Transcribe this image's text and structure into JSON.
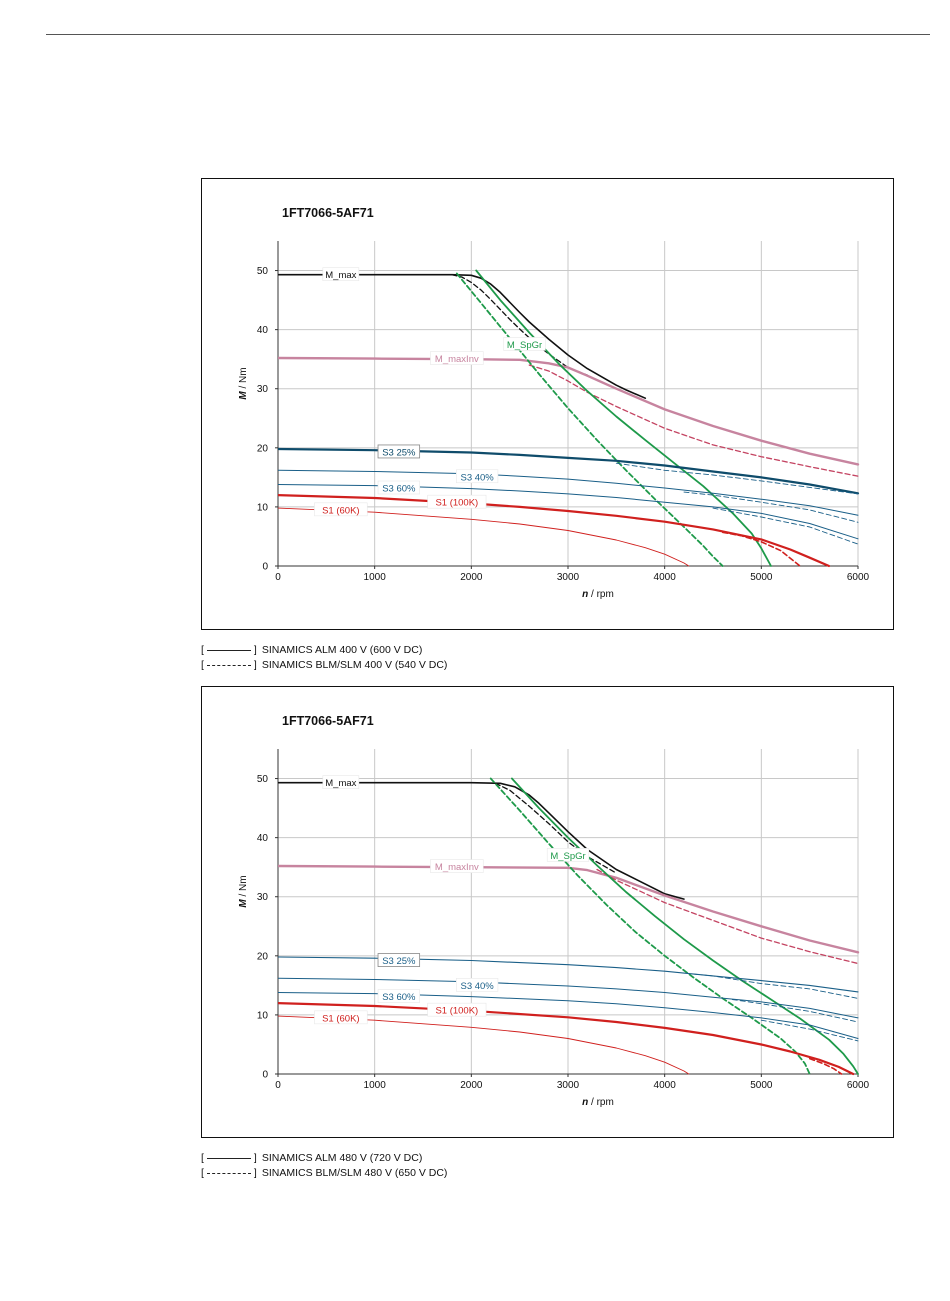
{
  "chart_data": [
    {
      "type": "line",
      "title": "1FT7066-5AF71",
      "xlabel_italic": "n",
      "xlabel_unit": "/ rpm",
      "ylabel_italic": "M",
      "ylabel_unit": "/ Nm",
      "xlim": [
        0,
        6000
      ],
      "ylim": [
        0,
        55
      ],
      "xticks": [
        "0",
        "1000",
        "2000",
        "3000",
        "4000",
        "5000",
        "6000"
      ],
      "yticks": [
        "0",
        "10",
        "20",
        "30",
        "40",
        "50"
      ],
      "grid": true,
      "series": [
        {
          "name": "M_max",
          "color": "#111111",
          "style": "solid",
          "width": 1.6,
          "x": [
            0,
            1500,
            1800,
            2000,
            2100,
            2200,
            2300,
            2400,
            2500,
            2600,
            2800,
            3000,
            3200,
            3500,
            3600,
            3800
          ],
          "y": [
            49.3,
            49.3,
            49.3,
            49.2,
            48.7,
            47.7,
            46.3,
            44.6,
            42.9,
            41.3,
            38.4,
            35.7,
            33.4,
            30.6,
            29.8,
            28.4
          ]
        },
        {
          "name": "",
          "color": "#111111",
          "style": "dashed",
          "width": 1.3,
          "x": [
            1800,
            1900,
            2000,
            2100,
            2200,
            2300,
            2400,
            2500,
            2600,
            2700,
            2800,
            3000,
            3200
          ],
          "y": [
            49.3,
            48.9,
            48.0,
            46.7,
            45.1,
            43.4,
            41.7,
            40.1,
            38.6,
            37.2,
            35.9,
            33.6,
            32.3
          ]
        },
        {
          "name": "M_maxInv",
          "color": "#c7849f",
          "style": "solid",
          "width": 2.4,
          "x": [
            0,
            1000,
            2000,
            2500,
            2800,
            3000,
            3200,
            3500,
            4000,
            4500,
            5000,
            5500,
            6000
          ],
          "y": [
            35.2,
            35.1,
            35.0,
            34.9,
            34.3,
            33.6,
            32.2,
            30.0,
            26.5,
            23.7,
            21.2,
            19.0,
            17.2
          ]
        },
        {
          "name": "",
          "color": "#c44462",
          "style": "dashed",
          "width": 1.3,
          "x": [
            2600,
            2800,
            3000,
            3200,
            3500,
            4000,
            4500,
            5000,
            5500,
            6000
          ],
          "y": [
            34.0,
            33.0,
            31.3,
            29.4,
            27.0,
            23.3,
            20.5,
            18.5,
            16.8,
            15.2
          ]
        },
        {
          "name": "M_SpGr",
          "color": "#1e9a4a",
          "style": "solid",
          "width": 1.8,
          "x": [
            2050,
            2300,
            2600,
            2900,
            3200,
            3500,
            3800,
            4100,
            4400,
            4700,
            4900,
            5000,
            5100
          ],
          "y": [
            50.0,
            45.0,
            39.5,
            34.3,
            29.6,
            25.3,
            21.3,
            17.4,
            13.5,
            9.0,
            5.5,
            3.0,
            0
          ]
        },
        {
          "name": "",
          "color": "#1e9a4a",
          "style": "dashed",
          "width": 1.8,
          "x": [
            1850,
            2100,
            2400,
            2700,
            3000,
            3300,
            3600,
            3900,
            4200,
            4400,
            4500,
            4600
          ],
          "y": [
            49.5,
            44.5,
            38.5,
            32.5,
            26.7,
            21.3,
            16.2,
            11.3,
            6.6,
            3.4,
            1.6,
            0
          ]
        },
        {
          "name": "S3 25%",
          "color": "#0f4c6b",
          "style": "solid",
          "width": 2.2,
          "x": [
            0,
            1000,
            2000,
            2500,
            3000,
            3500,
            4000,
            4500,
            5000,
            5500,
            6000
          ],
          "y": [
            19.8,
            19.6,
            19.2,
            18.8,
            18.3,
            17.8,
            17.0,
            16.0,
            15.0,
            13.8,
            12.3
          ]
        },
        {
          "name": "",
          "color": "#1a5f88",
          "style": "dashed",
          "width": 0.9,
          "x": [
            3500,
            4000,
            4500,
            5000,
            5500,
            6000
          ],
          "y": [
            17.4,
            16.2,
            15.4,
            14.4,
            13.3,
            12.2
          ]
        },
        {
          "name": "S3 40%",
          "color": "#1a5f88",
          "style": "solid",
          "width": 1.0,
          "x": [
            0,
            1000,
            2000,
            2500,
            3000,
            3500,
            4000,
            4500,
            5000,
            5500,
            6000
          ],
          "y": [
            16.2,
            16.0,
            15.6,
            15.2,
            14.7,
            14.0,
            13.2,
            12.3,
            11.3,
            10.2,
            8.6
          ]
        },
        {
          "name": "",
          "color": "#1a5f88",
          "style": "dashed",
          "width": 0.9,
          "x": [
            4200,
            4500,
            5000,
            5500,
            6000
          ],
          "y": [
            12.5,
            12.0,
            10.8,
            9.5,
            7.4
          ]
        },
        {
          "name": "S3 60%",
          "color": "#1a5f88",
          "style": "solid",
          "width": 1.0,
          "x": [
            0,
            1000,
            2000,
            2500,
            3000,
            3500,
            4000,
            4500,
            5000,
            5500,
            6000
          ],
          "y": [
            13.8,
            13.6,
            13.1,
            12.7,
            12.2,
            11.6,
            10.8,
            10.0,
            8.9,
            7.2,
            4.6
          ]
        },
        {
          "name": "",
          "color": "#1a5f88",
          "style": "dashed",
          "width": 0.9,
          "x": [
            4500,
            5000,
            5500,
            6000
          ],
          "y": [
            9.8,
            8.3,
            6.6,
            3.7
          ]
        },
        {
          "name": "S1 (100K)",
          "color": "#d0201e",
          "style": "solid",
          "width": 2.2,
          "x": [
            0,
            1000,
            2000,
            2500,
            3000,
            3500,
            4000,
            4500,
            5000,
            5300,
            5500,
            5700
          ],
          "y": [
            12.0,
            11.5,
            10.6,
            10.0,
            9.3,
            8.5,
            7.5,
            6.2,
            4.5,
            2.8,
            1.4,
            0
          ]
        },
        {
          "name": "",
          "color": "#d0201e",
          "style": "dashed",
          "width": 1.6,
          "x": [
            4600,
            4800,
            5000,
            5200,
            5300,
            5400
          ],
          "y": [
            5.7,
            5.1,
            4.1,
            2.6,
            1.3,
            0
          ]
        },
        {
          "name": "S1 (60K)",
          "color": "#d0201e",
          "style": "solid",
          "width": 0.9,
          "x": [
            0,
            1000,
            2000,
            2500,
            3000,
            3500,
            3800,
            4000,
            4200,
            4250
          ],
          "y": [
            9.8,
            9.1,
            7.9,
            7.1,
            6.0,
            4.4,
            3.1,
            2.0,
            0.5,
            0
          ]
        }
      ]
    },
    {
      "type": "line",
      "title": "1FT7066-5AF71",
      "xlabel_italic": "n",
      "xlabel_unit": "/ rpm",
      "ylabel_italic": "M",
      "ylabel_unit": "/ Nm",
      "xlim": [
        0,
        6000
      ],
      "ylim": [
        0,
        55
      ],
      "xticks": [
        "0",
        "1000",
        "2000",
        "3000",
        "4000",
        "5000",
        "6000"
      ],
      "yticks": [
        "0",
        "10",
        "20",
        "30",
        "40",
        "50"
      ],
      "grid": true,
      "series": [
        {
          "name": "M_max",
          "color": "#111111",
          "style": "solid",
          "width": 1.6,
          "x": [
            0,
            1500,
            2000,
            2300,
            2450,
            2600,
            2700,
            2800,
            3000,
            3200,
            3500,
            4000,
            4200
          ],
          "y": [
            49.3,
            49.3,
            49.3,
            49.2,
            48.6,
            47.2,
            45.8,
            44.2,
            41.0,
            38.0,
            34.6,
            30.5,
            29.6
          ]
        },
        {
          "name": "",
          "color": "#111111",
          "style": "dashed",
          "width": 1.3,
          "x": [
            2250,
            2400,
            2600,
            2800,
            3000,
            3200,
            3500
          ],
          "y": [
            49.2,
            48.0,
            45.3,
            42.4,
            39.3,
            36.8,
            34.0
          ]
        },
        {
          "name": "M_maxInv",
          "color": "#c7849f",
          "style": "solid",
          "width": 2.4,
          "x": [
            0,
            1000,
            2000,
            3000,
            3200,
            3500,
            4000,
            4500,
            5000,
            5500,
            6000
          ],
          "y": [
            35.2,
            35.1,
            35.0,
            34.9,
            34.5,
            33.2,
            30.2,
            27.5,
            25.0,
            22.6,
            20.6
          ]
        },
        {
          "name": "",
          "color": "#c44462",
          "style": "dashed",
          "width": 1.3,
          "x": [
            3300,
            3500,
            4000,
            4500,
            5000,
            5500,
            6000
          ],
          "y": [
            34.6,
            32.8,
            29.0,
            26.0,
            23.0,
            20.7,
            18.7
          ]
        },
        {
          "name": "M_SpGr",
          "color": "#1e9a4a",
          "style": "solid",
          "width": 1.8,
          "x": [
            2420,
            2700,
            3000,
            3300,
            3600,
            3900,
            4200,
            4500,
            4800,
            5100,
            5400,
            5700,
            5850,
            5950,
            6000
          ],
          "y": [
            50.0,
            45.0,
            40.0,
            35.3,
            30.8,
            26.7,
            22.8,
            19.2,
            15.8,
            12.6,
            9.4,
            5.8,
            3.4,
            1.3,
            0
          ]
        },
        {
          "name": "",
          "color": "#1e9a4a",
          "style": "dashed",
          "width": 1.8,
          "x": [
            2200,
            2500,
            2800,
            3100,
            3400,
            3700,
            4000,
            4300,
            4600,
            4900,
            5200,
            5350,
            5450,
            5500
          ],
          "y": [
            50.0,
            44.6,
            39.0,
            33.6,
            28.6,
            24.0,
            20.0,
            16.3,
            12.8,
            9.5,
            6.0,
            3.8,
            1.8,
            0
          ]
        },
        {
          "name": "S3 25%",
          "color": "#1a5f88",
          "style": "solid",
          "width": 1.1,
          "x": [
            0,
            1000,
            2000,
            3000,
            3500,
            4000,
            4500,
            5000,
            5500,
            6000
          ],
          "y": [
            19.8,
            19.6,
            19.2,
            18.5,
            18.0,
            17.4,
            16.6,
            15.8,
            15.0,
            13.9
          ]
        },
        {
          "name": "",
          "color": "#1a5f88",
          "style": "dashed",
          "width": 0.9,
          "x": [
            4300,
            4500,
            5000,
            5500,
            6000
          ],
          "y": [
            16.9,
            16.6,
            15.3,
            14.4,
            12.8
          ]
        },
        {
          "name": "S3 40%",
          "color": "#1a5f88",
          "style": "solid",
          "width": 1.0,
          "x": [
            0,
            1000,
            2000,
            3000,
            3500,
            4000,
            4500,
            5000,
            5500,
            6000
          ],
          "y": [
            16.2,
            16.0,
            15.6,
            14.9,
            14.4,
            13.8,
            13.0,
            12.2,
            11.1,
            9.5
          ]
        },
        {
          "name": "",
          "color": "#1a5f88",
          "style": "dashed",
          "width": 0.9,
          "x": [
            4700,
            5000,
            5500,
            6000
          ],
          "y": [
            12.6,
            11.9,
            10.6,
            8.8
          ]
        },
        {
          "name": "S3 60%",
          "color": "#1a5f88",
          "style": "solid",
          "width": 1.0,
          "x": [
            0,
            1000,
            2000,
            3000,
            3500,
            4000,
            4500,
            5000,
            5500,
            6000
          ],
          "y": [
            13.8,
            13.6,
            13.1,
            12.4,
            11.9,
            11.2,
            10.4,
            9.5,
            8.3,
            6.0
          ]
        },
        {
          "name": "",
          "color": "#1a5f88",
          "style": "dashed",
          "width": 0.9,
          "x": [
            5000,
            5500,
            6000
          ],
          "y": [
            9.1,
            7.6,
            5.6
          ]
        },
        {
          "name": "S1 (100K)",
          "color": "#d0201e",
          "style": "solid",
          "width": 2.2,
          "x": [
            0,
            1000,
            2000,
            3000,
            3500,
            4000,
            4500,
            5000,
            5300,
            5600,
            5800,
            5950
          ],
          "y": [
            12.0,
            11.5,
            10.7,
            9.6,
            8.8,
            7.8,
            6.6,
            5.0,
            3.8,
            2.4,
            1.2,
            0
          ]
        },
        {
          "name": "",
          "color": "#d0201e",
          "style": "dashed",
          "width": 1.6,
          "x": [
            5500,
            5650,
            5750,
            5830
          ],
          "y": [
            2.6,
            1.7,
            0.9,
            0
          ]
        },
        {
          "name": "S1 (60K)",
          "color": "#d0201e",
          "style": "solid",
          "width": 0.9,
          "x": [
            0,
            1000,
            2000,
            2500,
            3000,
            3500,
            3800,
            4000,
            4200,
            4250
          ],
          "y": [
            9.8,
            9.1,
            7.9,
            7.1,
            6.0,
            4.4,
            3.1,
            2.0,
            0.5,
            0
          ]
        }
      ]
    }
  ],
  "charts_labels": [
    [
      {
        "text": "M_max",
        "x": 650,
        "y": 49.3,
        "color": "#111111"
      },
      {
        "text": "M_SpGr",
        "x": 2550,
        "y": 37.5,
        "color": "#1e9a4a"
      },
      {
        "text": "M_maxInv",
        "x": 1850,
        "y": 35.1,
        "color": "#c7849f"
      },
      {
        "text": "S3 25%",
        "x": 1250,
        "y": 19.3,
        "color": "#0f4c6b",
        "box": true
      },
      {
        "text": "S3 40%",
        "x": 2060,
        "y": 15.1,
        "color": "#1a5f88"
      },
      {
        "text": "S3 60%",
        "x": 1250,
        "y": 13.2,
        "color": "#1a5f88"
      },
      {
        "text": "S1 (100K)",
        "x": 1850,
        "y": 10.8,
        "color": "#d0201e"
      },
      {
        "text": "S1 (60K)",
        "x": 650,
        "y": 9.5,
        "color": "#d0201e"
      }
    ],
    [
      {
        "text": "M_max",
        "x": 650,
        "y": 49.3,
        "color": "#111111"
      },
      {
        "text": "M_SpGr",
        "x": 3000,
        "y": 37.0,
        "color": "#1e9a4a"
      },
      {
        "text": "M_maxInv",
        "x": 1850,
        "y": 35.1,
        "color": "#c7849f"
      },
      {
        "text": "S3 25%",
        "x": 1250,
        "y": 19.2,
        "color": "#1a5f88",
        "box": true
      },
      {
        "text": "S3 40%",
        "x": 2060,
        "y": 15.0,
        "color": "#1a5f88"
      },
      {
        "text": "S3 60%",
        "x": 1250,
        "y": 13.1,
        "color": "#1a5f88"
      },
      {
        "text": "S1 (100K)",
        "x": 1850,
        "y": 10.8,
        "color": "#d0201e"
      },
      {
        "text": "S1 (60K)",
        "x": 650,
        "y": 9.5,
        "color": "#d0201e"
      }
    ]
  ],
  "legend_top": {
    "row1_open": "[",
    "row1_close": "]",
    "row1_text": "SINAMICS ALM 400 V (600 V DC)",
    "row2_open": "[",
    "row2_close": "]",
    "row2_text": "SINAMICS BLM/SLM 400 V (540 V DC)"
  },
  "legend_bottom": {
    "row1_open": "[",
    "row1_close": "]",
    "row1_text": "SINAMICS ALM 480 V (720 V DC)",
    "row2_open": "[",
    "row2_close": "]",
    "row2_text": "SINAMICS BLM/SLM 480 V (650 V DC)"
  }
}
